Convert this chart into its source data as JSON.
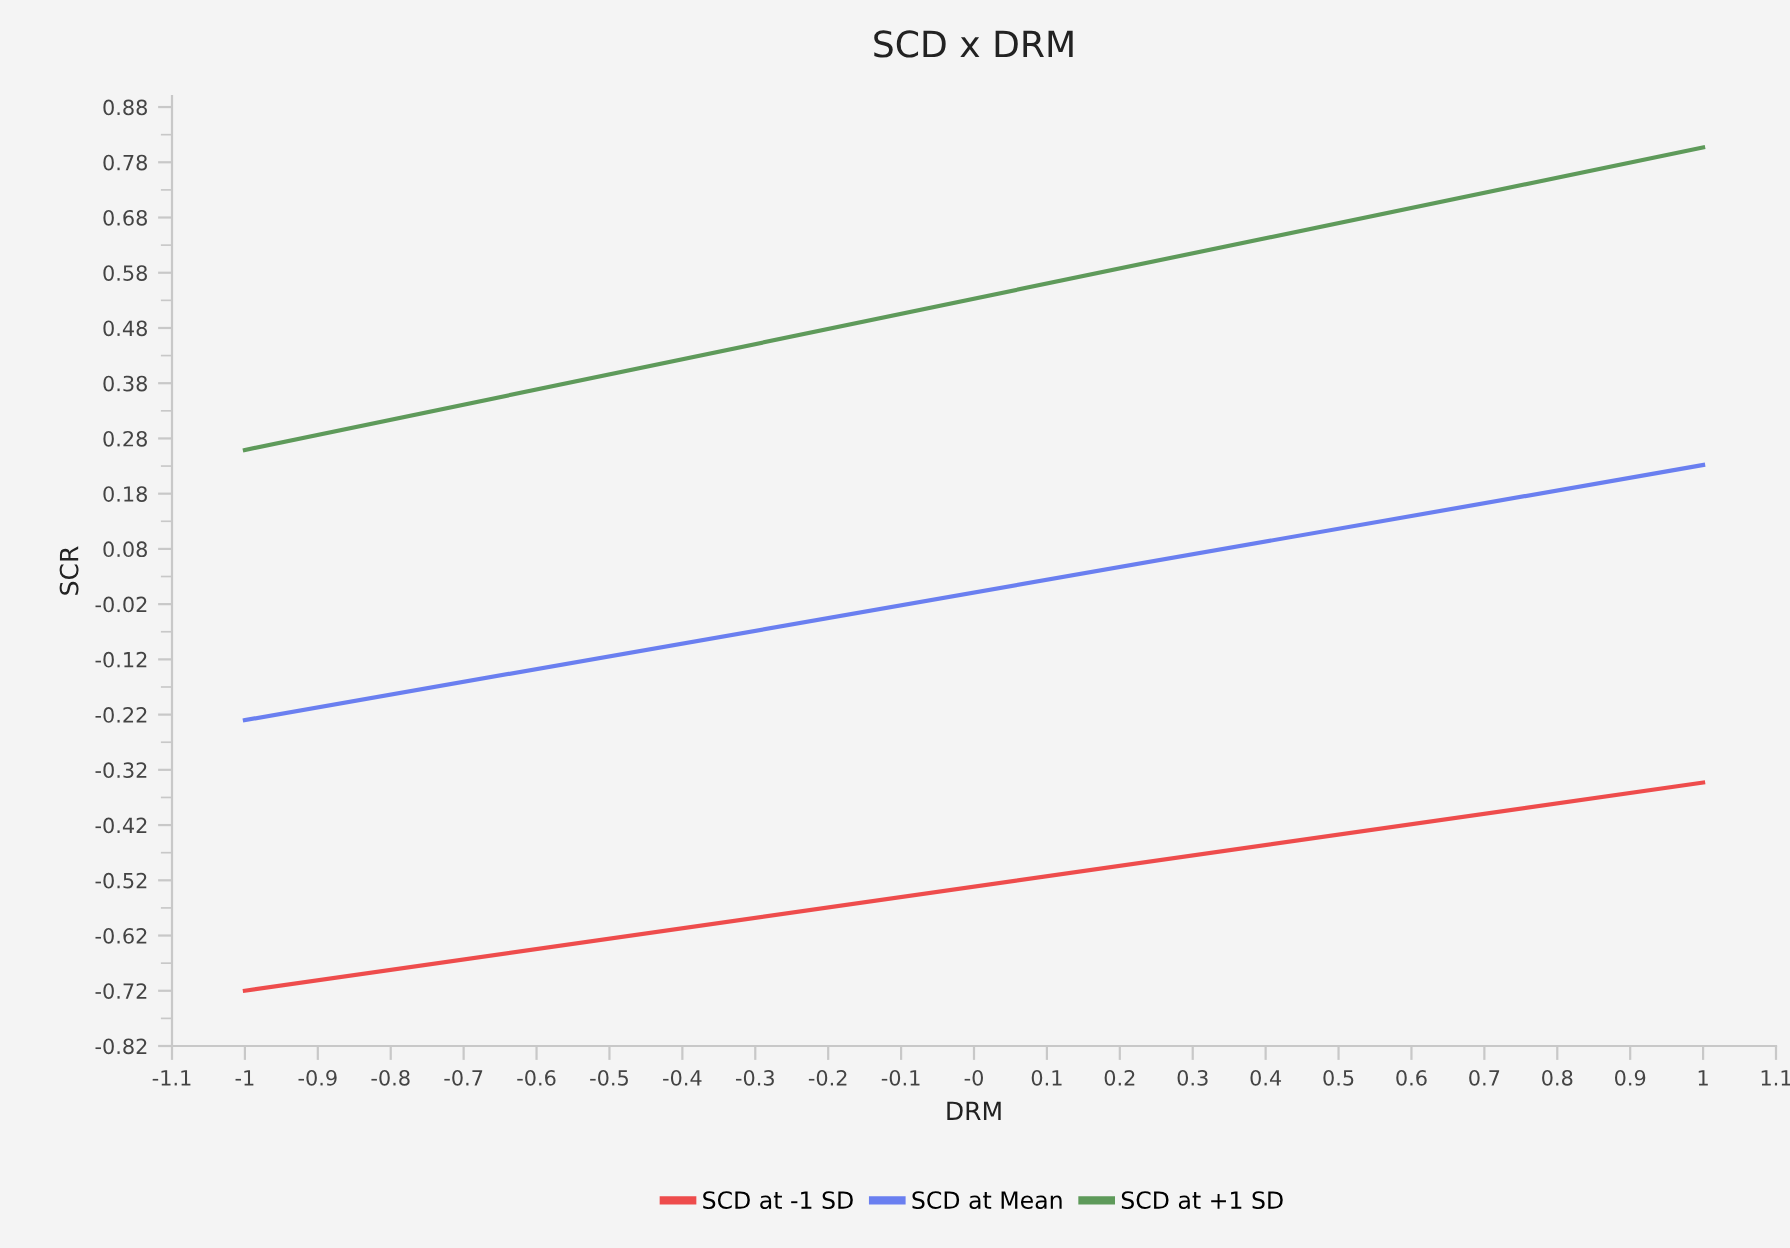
{
  "chart_data": {
    "type": "line",
    "title": "SCD x DRM",
    "xlabel": "DRM",
    "ylabel": "SCR",
    "x": [
      -1,
      1
    ],
    "series": [
      {
        "name": "SCD at -1 SD",
        "color": "#ee4c4c",
        "values": [
          -0.72,
          -0.343
        ]
      },
      {
        "name": "SCD at Mean",
        "color": "#6a7ff0",
        "values": [
          -0.23,
          0.232
        ]
      },
      {
        "name": "SCD at +1 SD",
        "color": "#5e9a5a",
        "values": [
          0.259,
          0.807
        ]
      }
    ],
    "xlim": [
      -1.1,
      1.1
    ],
    "xticks": [
      -1.1,
      -1,
      -0.9,
      -0.8,
      -0.7,
      -0.6,
      -0.5,
      -0.4,
      -0.3,
      -0.2,
      -0.1,
      {
        "value": 0,
        "label": "-0"
      },
      0.1,
      0.2,
      0.3,
      0.4,
      0.5,
      0.6,
      0.7,
      0.8,
      0.9,
      1,
      1.1
    ],
    "ylim": [
      -0.82,
      0.9
    ],
    "yticks": [
      -0.82,
      -0.72,
      -0.62,
      -0.52,
      -0.42,
      -0.32,
      -0.22,
      -0.12,
      -0.02,
      0.08,
      0.18,
      0.28,
      0.38,
      0.48,
      0.58,
      0.68,
      0.78,
      0.88
    ],
    "grid": false,
    "legend": "bottom",
    "marker": "none",
    "line_style": "solid"
  }
}
